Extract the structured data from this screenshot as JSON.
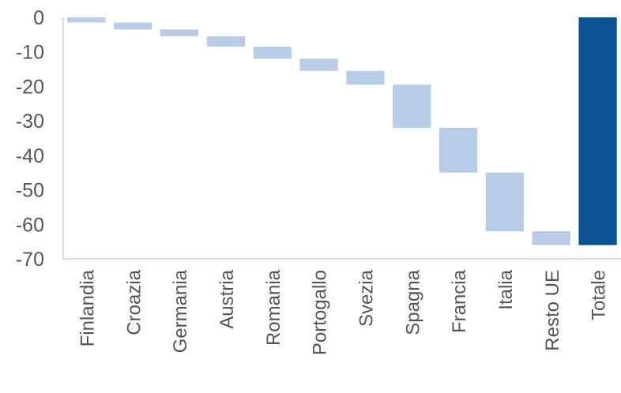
{
  "chart_data": {
    "type": "bar",
    "subtype": "waterfall",
    "title": "",
    "xlabel": "",
    "ylabel": "",
    "ylim": [
      -70,
      0
    ],
    "yticks": [
      0,
      -10,
      -20,
      -30,
      -40,
      -50,
      -60,
      -70
    ],
    "grid": false,
    "categories": [
      "Finlandia",
      "Croazia",
      "Germania",
      "Austria",
      "Romania",
      "Portogallo",
      "Svezia",
      "Spagna",
      "Francia",
      "Italia",
      "Resto UE",
      "Totale"
    ],
    "values": [
      -1.5,
      -2,
      -2,
      -3,
      -3.5,
      -3.5,
      -4,
      -12.5,
      -13,
      -17,
      -4,
      -66
    ],
    "total_index": 11,
    "colors": {
      "step": "#b8cce8",
      "total": "#0a5293",
      "axis": "#d0d0d0",
      "text": "#555555"
    }
  }
}
